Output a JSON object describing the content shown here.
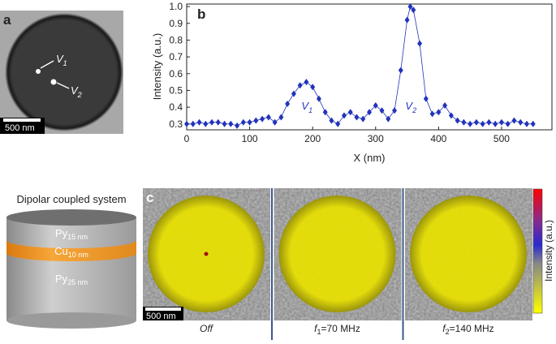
{
  "panel_a": {
    "letter": "a",
    "labels": [
      {
        "main": "V",
        "sub": "1"
      },
      {
        "main": "V",
        "sub": "2"
      }
    ],
    "scale_bar": "500 nm"
  },
  "chart_data": {
    "type": "line",
    "letter": "b",
    "x_label": "X (nm)",
    "y_label": "Intensity (a.u.)",
    "x": [
      0,
      10,
      20,
      30,
      40,
      50,
      60,
      70,
      80,
      90,
      100,
      110,
      120,
      130,
      140,
      150,
      160,
      170,
      180,
      190,
      200,
      210,
      220,
      230,
      240,
      250,
      260,
      270,
      280,
      290,
      300,
      310,
      320,
      330,
      340,
      350,
      355,
      360,
      370,
      380,
      390,
      400,
      410,
      420,
      430,
      440,
      450,
      460,
      470,
      480,
      490,
      500,
      510,
      520,
      530,
      540,
      550
    ],
    "series": [
      {
        "color": "#2233bb",
        "values": [
          0.3,
          0.3,
          0.31,
          0.3,
          0.31,
          0.31,
          0.3,
          0.3,
          0.29,
          0.31,
          0.31,
          0.32,
          0.33,
          0.34,
          0.31,
          0.34,
          0.42,
          0.48,
          0.53,
          0.55,
          0.52,
          0.45,
          0.37,
          0.32,
          0.3,
          0.35,
          0.37,
          0.34,
          0.33,
          0.37,
          0.41,
          0.38,
          0.33,
          0.38,
          0.62,
          0.92,
          1.0,
          0.98,
          0.78,
          0.45,
          0.36,
          0.37,
          0.41,
          0.35,
          0.32,
          0.31,
          0.3,
          0.31,
          0.3,
          0.31,
          0.3,
          0.31,
          0.3,
          0.32,
          0.31,
          0.3,
          0.3
        ]
      }
    ],
    "xlim": [
      0,
      580
    ],
    "ylim": [
      0.265,
      1.015
    ],
    "xticks": [
      0,
      100,
      200,
      300,
      400,
      500
    ],
    "yticks": [
      0.3,
      0.4,
      0.5,
      0.6,
      0.7,
      0.8,
      0.9,
      {
        "value": 1,
        "label": "1.0"
      }
    ],
    "annotations": [
      {
        "main": "V",
        "sub": "1",
        "x": 190
      },
      {
        "main": "V",
        "sub": "2",
        "x": 355
      }
    ]
  },
  "panel_c": {
    "letter": "c",
    "title": "Dipolar coupled system",
    "layers": [
      {
        "main": "Py",
        "sub": "15 nm"
      },
      {
        "main": "Cu",
        "sub": "10 nm"
      },
      {
        "main": "Py",
        "sub": "25 nm"
      }
    ],
    "colorbar_label": "Intensity (a.u.)",
    "scale_bar": "500 nm",
    "captions": [
      {
        "main": "Off"
      },
      {
        "main": "f",
        "sub": "1",
        "rest": "=70 MHz"
      },
      {
        "main": "f",
        "sub": "2",
        "rest": "=140 MHz"
      }
    ]
  }
}
